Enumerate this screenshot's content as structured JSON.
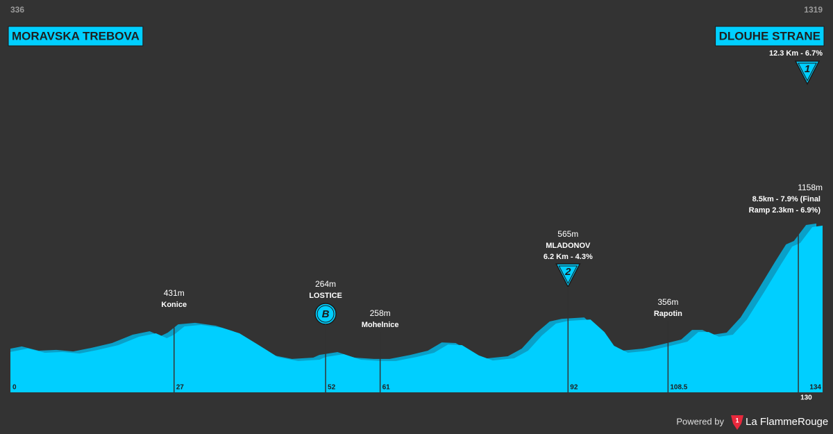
{
  "chart_data": {
    "type": "area",
    "color": "#00cfff",
    "shadow_color": "#0aa0c8",
    "start": {
      "elevation": "336",
      "name": "MORAVSKA TREBOVA"
    },
    "finish": {
      "elevation": "1319",
      "name": "DLOUHE STRANE",
      "climb": "12.3 Km - 6.7%",
      "category": "1"
    },
    "x": [
      0,
      2.9,
      5.7,
      8.6,
      11.4,
      14.3,
      17.8,
      21.2,
      24,
      25.8,
      27,
      28.7,
      31.5,
      34.9,
      37.8,
      40.6,
      44.1,
      47.5,
      51,
      52,
      55,
      57.8,
      61,
      63.6,
      67,
      69.9,
      72.2,
      74.5,
      77.3,
      79.6,
      83.1,
      85.4,
      87.7,
      90,
      92,
      95.7,
      98,
      99.6,
      101.9,
      105.4,
      108.5,
      111.7,
      113.5,
      115.2,
      116.9,
      119.2,
      121.5,
      124.4,
      127.2,
      129,
      130.3,
      132.3,
      134
    ],
    "values": [
      318,
      341,
      313,
      318,
      308,
      331,
      364,
      419,
      442,
      410,
      433,
      488,
      498,
      479,
      442,
      373,
      285,
      258,
      267,
      285,
      304,
      267,
      258,
      258,
      285,
      313,
      368,
      364,
      295,
      262,
      276,
      327,
      428,
      507,
      525,
      534,
      451,
      359,
      313,
      327,
      355,
      387,
      451,
      451,
      419,
      433,
      534,
      719,
      904,
      1019,
      1042,
      1148,
      1158
    ],
    "xlim": [
      0,
      134
    ],
    "ylim": [
      50,
      1450
    ],
    "xticks": [
      0,
      27,
      52,
      61,
      92,
      108.5,
      130,
      134
    ],
    "points": [
      {
        "km": 27,
        "elevation": "431m",
        "name": "Konice"
      },
      {
        "km": 52,
        "elevation": "264m",
        "name": "LOSTICE",
        "badge": "B"
      },
      {
        "km": 61,
        "elevation": "258m",
        "name": "Mohelnice"
      },
      {
        "km": 92,
        "elevation": "565m",
        "name": "MLADONOV",
        "climb": [
          "6.2 Km - 4.3%"
        ],
        "category": "2"
      },
      {
        "km": 108.5,
        "elevation": "356m",
        "name": "Rapotin"
      },
      {
        "km": 130,
        "elevation": "1158m",
        "climb": [
          "8.5km - 7.9% (Final",
          "Ramp 2.3km - 6.9%)"
        ]
      }
    ],
    "footer": {
      "powered": "Powered by",
      "brand": "La FlammeRouge",
      "logo": "1"
    }
  }
}
